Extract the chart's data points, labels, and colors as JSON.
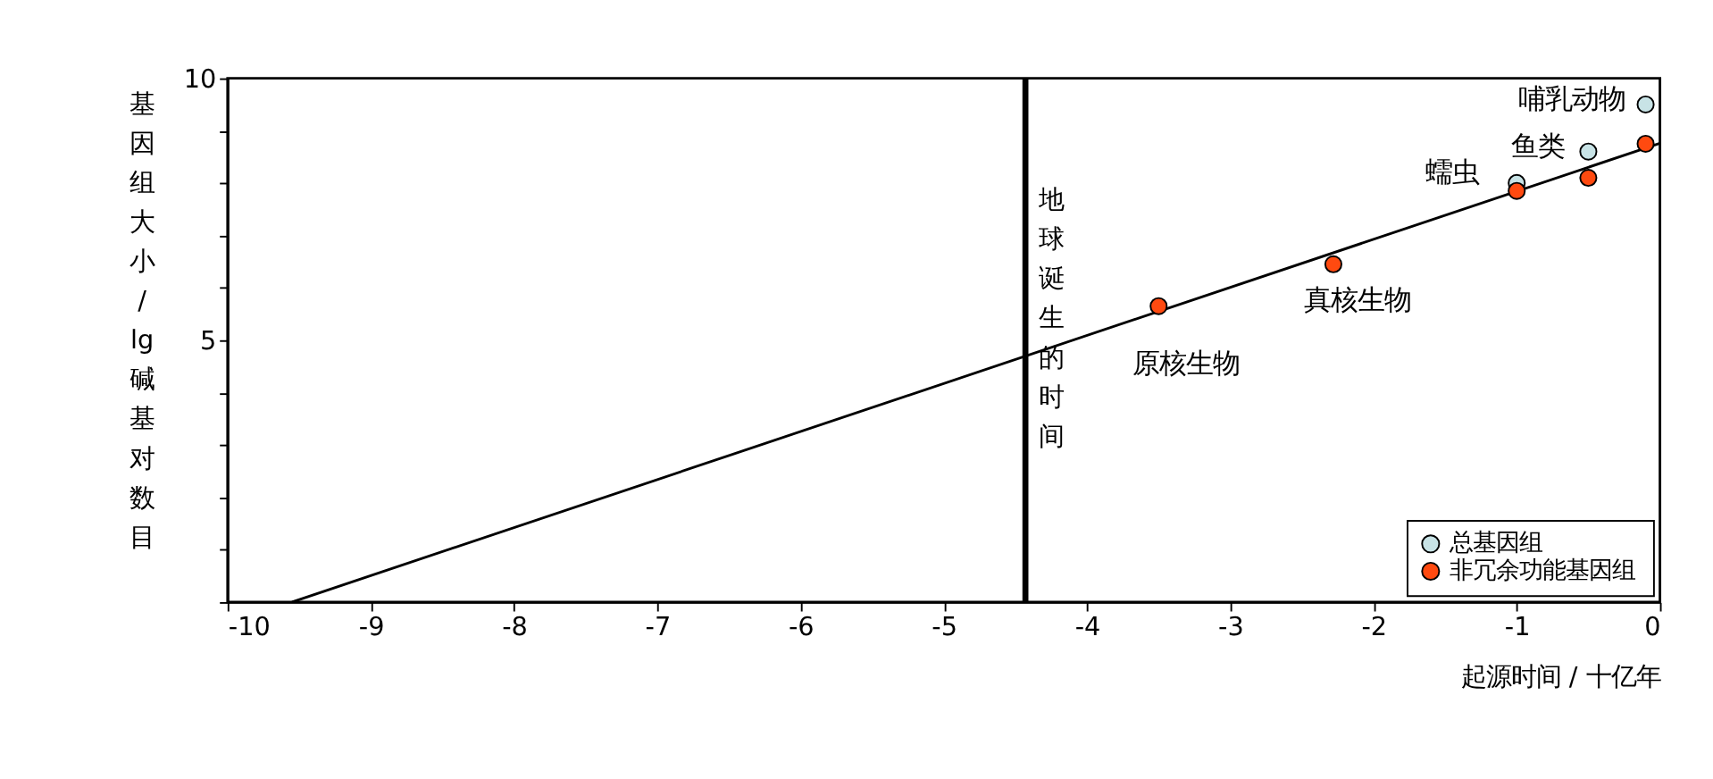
{
  "chart_data": {
    "type": "scatter",
    "xlabel": "起源时间 / 十亿年",
    "ylabel": "基因组大小 / lg 碱基对数目",
    "xlim": [
      -10,
      0
    ],
    "xticks": [
      -10,
      -9,
      -8,
      -7,
      -6,
      -5,
      -4,
      -3,
      -2,
      -1,
      0
    ],
    "ylim": [
      0,
      10
    ],
    "yticks": [
      {
        "value": 0,
        "label": null
      },
      {
        "value": 1,
        "label": null
      },
      {
        "value": 2,
        "label": null
      },
      {
        "value": 3,
        "label": null
      },
      {
        "value": 4,
        "label": null
      },
      5,
      {
        "value": 6,
        "label": null
      },
      {
        "value": 7,
        "label": null
      },
      {
        "value": 8,
        "label": null
      },
      {
        "value": 9,
        "label": null
      },
      10
    ],
    "series": [
      {
        "name": "总基因组",
        "color": "#c8e3e6",
        "x": [
          -1.0,
          -0.5,
          -0.1
        ],
        "values": [
          8.0,
          8.6,
          9.5
        ]
      },
      {
        "name": "非冗余功能基因组",
        "color": "#ff4a10",
        "x": [
          -3.5,
          -2.28,
          -1.0,
          -0.5,
          -0.1
        ],
        "values": [
          5.65,
          6.45,
          7.85,
          8.1,
          8.75
        ]
      },
      {
        "type": "line",
        "marker": "none",
        "color": "#000000",
        "x": [
          -9.55,
          0
        ],
        "values": [
          0,
          8.76
        ]
      }
    ],
    "ref_lines": [
      {
        "axis": "x",
        "value": -4.43,
        "label": "地球诞生的时间"
      }
    ],
    "annotations": [
      {
        "text": "哺乳动物",
        "x": -0.1,
        "y": 9.5
      },
      {
        "text": "鱼类",
        "x": -0.5,
        "y": 8.6
      },
      {
        "text": "蠕虫",
        "x": -1.0,
        "y": 8.0
      },
      {
        "text": "真核生物",
        "x": -2.28,
        "y": 6.45
      },
      {
        "text": "原核生物",
        "x": -3.5,
        "y": 5.65
      }
    ],
    "marker": "circle",
    "line_style": "solid",
    "grid": false,
    "legend": "bottom right"
  }
}
